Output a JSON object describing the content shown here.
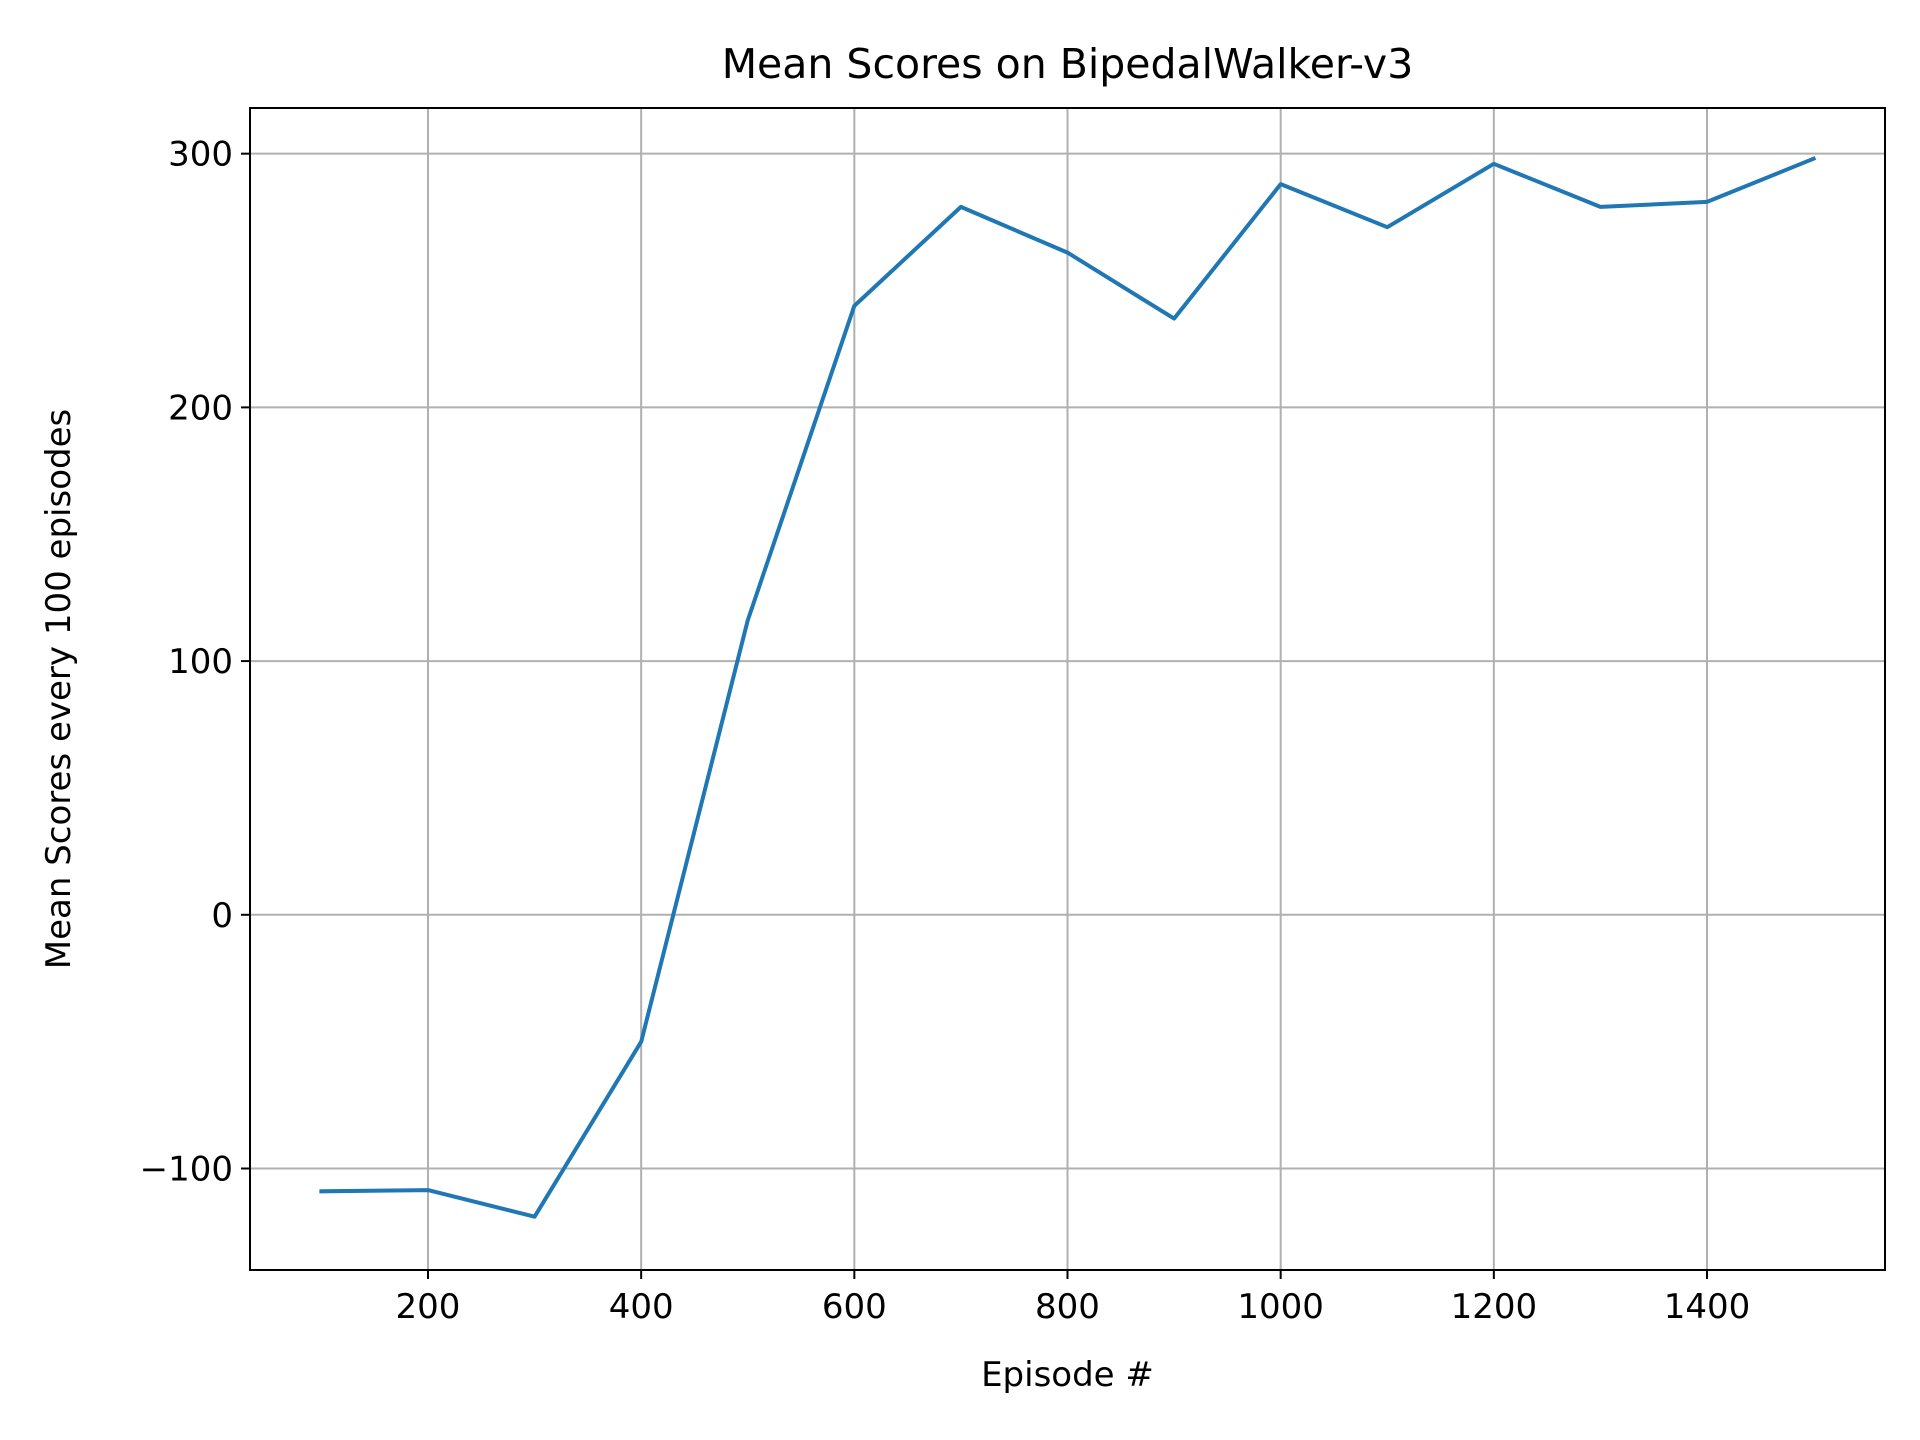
{
  "chart_data": {
    "type": "line",
    "title": "Mean Scores on BipedalWalker-v3",
    "xlabel": "Episode #",
    "ylabel": "Mean Scores every 100 episodes",
    "xlim": [
      33,
      1567
    ],
    "ylim": [
      -140,
      318
    ],
    "xticks": [
      200,
      400,
      600,
      800,
      1000,
      1200,
      1400
    ],
    "yticks": [
      -100,
      0,
      100,
      200,
      300
    ],
    "xtick_labels": [
      "200",
      "400",
      "600",
      "800",
      "1000",
      "1200",
      "1400"
    ],
    "ytick_labels": [
      "−100",
      "0",
      "100",
      "200",
      "300"
    ],
    "grid": true,
    "legend": false,
    "series": [
      {
        "color": "#1f77b4",
        "x": [
          100,
          200,
          300,
          400,
          500,
          600,
          700,
          800,
          900,
          1000,
          1100,
          1200,
          1300,
          1400,
          1500
        ],
        "y": [
          -109,
          -108.5,
          -119,
          -50,
          116,
          240,
          279,
          261,
          235,
          288,
          271,
          296,
          279,
          281,
          298
        ]
      }
    ]
  }
}
